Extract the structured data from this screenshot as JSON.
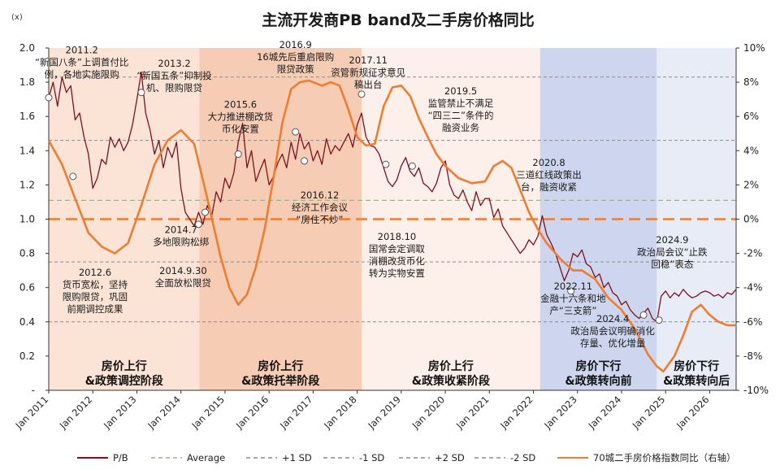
{
  "chart_data": {
    "type": "line",
    "title": "主流开发商PB band及二手房价格同比",
    "y_unit_label": "(x)",
    "x_ticks": [
      "Jan 2011",
      "Jan 2012",
      "Jan 2013",
      "Jan 2014",
      "Jan 2015",
      "Jan 2016",
      "Jan 2017",
      "Jan 2018",
      "Jan 2019",
      "Jan 2020",
      "Jan 2021",
      "Jan 2022",
      "Jan 2023",
      "Jan 2024",
      "Jan 2025",
      "Jan 2026"
    ],
    "x_range": [
      2011.0,
      2026.6
    ],
    "y_left": {
      "min": 0.0,
      "max": 2.0,
      "ticks": [
        "-",
        "0.2",
        "0.4",
        "0.6",
        "0.8",
        "1.0",
        "1.2",
        "1.4",
        "1.6",
        "1.8",
        "2.0"
      ]
    },
    "y_right": {
      "min": -10,
      "max": 10,
      "ticks": [
        "-10%",
        "-8%",
        "-6%",
        "-4%",
        "-2%",
        "0%",
        "2%",
        "4%",
        "6%",
        "8%",
        "10%"
      ]
    },
    "reference_lines": {
      "average": 1.11,
      "plus_1sd": 1.46,
      "minus_1sd": 0.75,
      "plus_2sd": 1.83,
      "minus_2sd": 0.4,
      "yoy_zero": 0.0
    },
    "phases": [
      {
        "start": 2011.0,
        "end": 2014.42,
        "color": "#fbe4d6",
        "label_line1": "房价上行",
        "label_line2": "&政策调控阶段"
      },
      {
        "start": 2014.42,
        "end": 2018.1,
        "color": "#f6cdb4",
        "label_line1": "房价上行",
        "label_line2": "&政策托举阶段"
      },
      {
        "start": 2018.1,
        "end": 2022.15,
        "color": "#fdf0ea",
        "label_line1": "房价上行",
        "label_line2": "&政策收紧阶段"
      },
      {
        "start": 2022.15,
        "end": 2024.8,
        "color": "#cdd6ee",
        "label_line1": "房价下行",
        "label_line2": "&政策转向前"
      },
      {
        "start": 2024.8,
        "end": 2026.6,
        "color": "#e8ecf7",
        "label_line1": "房价下行",
        "label_line2": "&政策转向后"
      }
    ],
    "series": [
      {
        "name": "P/B",
        "color": "#7b1020",
        "points": [
          [
            2011.0,
            1.71
          ],
          [
            2011.1,
            1.8
          ],
          [
            2011.2,
            1.66
          ],
          [
            2011.3,
            1.83
          ],
          [
            2011.4,
            1.74
          ],
          [
            2011.5,
            1.78
          ],
          [
            2011.6,
            1.58
          ],
          [
            2011.7,
            1.62
          ],
          [
            2011.8,
            1.48
          ],
          [
            2011.9,
            1.38
          ],
          [
            2012.0,
            1.18
          ],
          [
            2012.1,
            1.24
          ],
          [
            2012.2,
            1.35
          ],
          [
            2012.3,
            1.32
          ],
          [
            2012.4,
            1.48
          ],
          [
            2012.5,
            1.42
          ],
          [
            2012.6,
            1.47
          ],
          [
            2012.7,
            1.4
          ],
          [
            2012.8,
            1.45
          ],
          [
            2012.9,
            1.55
          ],
          [
            2013.0,
            1.7
          ],
          [
            2013.1,
            1.86
          ],
          [
            2013.2,
            1.62
          ],
          [
            2013.3,
            1.52
          ],
          [
            2013.4,
            1.38
          ],
          [
            2013.5,
            1.46
          ],
          [
            2013.6,
            1.3
          ],
          [
            2013.7,
            1.42
          ],
          [
            2013.8,
            1.36
          ],
          [
            2013.9,
            1.45
          ],
          [
            2014.0,
            1.18
          ],
          [
            2014.1,
            1.04
          ],
          [
            2014.2,
            1.0
          ],
          [
            2014.3,
            0.96
          ],
          [
            2014.4,
            1.04
          ],
          [
            2014.5,
            0.97
          ],
          [
            2014.6,
            1.08
          ],
          [
            2014.7,
            1.02
          ],
          [
            2014.8,
            1.16
          ],
          [
            2014.9,
            1.1
          ],
          [
            2015.0,
            1.24
          ],
          [
            2015.1,
            1.18
          ],
          [
            2015.2,
            1.27
          ],
          [
            2015.3,
            1.45
          ],
          [
            2015.4,
            1.56
          ],
          [
            2015.5,
            1.3
          ],
          [
            2015.6,
            1.4
          ],
          [
            2015.7,
            1.22
          ],
          [
            2015.8,
            1.29
          ],
          [
            2015.9,
            1.35
          ],
          [
            2016.0,
            1.2
          ],
          [
            2016.1,
            1.25
          ],
          [
            2016.2,
            1.33
          ],
          [
            2016.3,
            1.38
          ],
          [
            2016.4,
            1.3
          ],
          [
            2016.5,
            1.45
          ],
          [
            2016.6,
            1.35
          ],
          [
            2016.7,
            1.5
          ],
          [
            2016.8,
            1.41
          ],
          [
            2016.9,
            1.45
          ],
          [
            2017.0,
            1.34
          ],
          [
            2017.1,
            1.4
          ],
          [
            2017.2,
            1.32
          ],
          [
            2017.3,
            1.47
          ],
          [
            2017.4,
            1.38
          ],
          [
            2017.5,
            1.43
          ],
          [
            2017.6,
            1.4
          ],
          [
            2017.7,
            1.45
          ],
          [
            2017.8,
            1.5
          ],
          [
            2017.9,
            1.42
          ],
          [
            2018.0,
            1.55
          ],
          [
            2018.1,
            1.62
          ],
          [
            2018.2,
            1.48
          ],
          [
            2018.3,
            1.43
          ],
          [
            2018.4,
            1.42
          ],
          [
            2018.5,
            1.38
          ],
          [
            2018.6,
            1.3
          ],
          [
            2018.7,
            1.22
          ],
          [
            2018.8,
            1.19
          ],
          [
            2018.9,
            1.23
          ],
          [
            2019.0,
            1.31
          ],
          [
            2019.1,
            1.36
          ],
          [
            2019.2,
            1.28
          ],
          [
            2019.3,
            1.25
          ],
          [
            2019.4,
            1.3
          ],
          [
            2019.5,
            1.21
          ],
          [
            2019.6,
            1.19
          ],
          [
            2019.7,
            1.16
          ],
          [
            2019.8,
            1.21
          ],
          [
            2019.9,
            1.3
          ],
          [
            2020.0,
            1.34
          ],
          [
            2020.1,
            1.2
          ],
          [
            2020.2,
            1.14
          ],
          [
            2020.3,
            1.12
          ],
          [
            2020.4,
            1.17
          ],
          [
            2020.5,
            1.1
          ],
          [
            2020.6,
            1.05
          ],
          [
            2020.7,
            1.16
          ],
          [
            2020.8,
            1.08
          ],
          [
            2020.9,
            1.12
          ],
          [
            2021.0,
            1.12
          ],
          [
            2021.1,
            1.01
          ],
          [
            2021.2,
            1.06
          ],
          [
            2021.3,
            0.96
          ],
          [
            2021.4,
            0.92
          ],
          [
            2021.5,
            0.88
          ],
          [
            2021.6,
            0.84
          ],
          [
            2021.7,
            0.8
          ],
          [
            2021.8,
            0.83
          ],
          [
            2021.9,
            0.88
          ],
          [
            2022.0,
            0.85
          ],
          [
            2022.1,
            0.9
          ],
          [
            2022.2,
            1.02
          ],
          [
            2022.3,
            0.91
          ],
          [
            2022.4,
            0.86
          ],
          [
            2022.5,
            0.8
          ],
          [
            2022.6,
            0.72
          ],
          [
            2022.7,
            0.64
          ],
          [
            2022.8,
            0.7
          ],
          [
            2022.9,
            0.8
          ],
          [
            2023.0,
            0.78
          ],
          [
            2023.1,
            0.82
          ],
          [
            2023.2,
            0.74
          ],
          [
            2023.3,
            0.72
          ],
          [
            2023.4,
            0.66
          ],
          [
            2023.5,
            0.68
          ],
          [
            2023.6,
            0.6
          ],
          [
            2023.7,
            0.63
          ],
          [
            2023.8,
            0.57
          ],
          [
            2023.9,
            0.55
          ],
          [
            2024.0,
            0.5
          ],
          [
            2024.1,
            0.52
          ],
          [
            2024.2,
            0.47
          ],
          [
            2024.3,
            0.44
          ],
          [
            2024.4,
            0.42
          ],
          [
            2024.5,
            0.45
          ],
          [
            2024.6,
            0.48
          ],
          [
            2024.7,
            0.42
          ],
          [
            2024.8,
            0.4
          ],
          [
            2024.9,
            0.55
          ],
          [
            2025.0,
            0.58
          ],
          [
            2025.1,
            0.54
          ],
          [
            2025.2,
            0.57
          ],
          [
            2025.3,
            0.55
          ],
          [
            2025.4,
            0.59
          ],
          [
            2025.5,
            0.56
          ],
          [
            2025.6,
            0.54
          ],
          [
            2025.7,
            0.55
          ],
          [
            2025.8,
            0.57
          ],
          [
            2025.9,
            0.58
          ],
          [
            2026.0,
            0.57
          ],
          [
            2026.1,
            0.55
          ],
          [
            2026.2,
            0.56
          ],
          [
            2026.3,
            0.54
          ],
          [
            2026.4,
            0.57
          ],
          [
            2026.5,
            0.56
          ],
          [
            2026.6,
            0.59
          ]
        ]
      },
      {
        "name": "70城二手房价格指数同比（右轴）",
        "color": "#ed7d31",
        "axis": "right",
        "points": [
          [
            2011.0,
            4.6
          ],
          [
            2011.3,
            3.2
          ],
          [
            2011.6,
            1.2
          ],
          [
            2011.9,
            -0.8
          ],
          [
            2012.2,
            -1.6
          ],
          [
            2012.5,
            -2.0
          ],
          [
            2012.8,
            -1.4
          ],
          [
            2013.1,
            0.8
          ],
          [
            2013.4,
            3.2
          ],
          [
            2013.7,
            4.6
          ],
          [
            2014.0,
            5.2
          ],
          [
            2014.3,
            4.4
          ],
          [
            2014.6,
            1.2
          ],
          [
            2014.9,
            -2.2
          ],
          [
            2015.1,
            -4.0
          ],
          [
            2015.3,
            -5.0
          ],
          [
            2015.5,
            -4.4
          ],
          [
            2015.7,
            -2.8
          ],
          [
            2015.9,
            -0.6
          ],
          [
            2016.1,
            2.4
          ],
          [
            2016.3,
            5.6
          ],
          [
            2016.5,
            7.6
          ],
          [
            2016.7,
            8.0
          ],
          [
            2016.9,
            8.1
          ],
          [
            2017.2,
            7.8
          ],
          [
            2017.4,
            8.0
          ],
          [
            2017.6,
            7.8
          ],
          [
            2017.8,
            6.4
          ],
          [
            2018.0,
            4.8
          ],
          [
            2018.2,
            4.3
          ],
          [
            2018.4,
            4.4
          ],
          [
            2018.6,
            6.6
          ],
          [
            2018.8,
            7.7
          ],
          [
            2019.0,
            7.8
          ],
          [
            2019.2,
            7.2
          ],
          [
            2019.4,
            5.9
          ],
          [
            2019.6,
            4.8
          ],
          [
            2019.8,
            3.8
          ],
          [
            2020.0,
            3.1
          ],
          [
            2020.3,
            2.4
          ],
          [
            2020.6,
            2.1
          ],
          [
            2020.9,
            2.2
          ],
          [
            2021.1,
            3.1
          ],
          [
            2021.3,
            3.4
          ],
          [
            2021.5,
            3.0
          ],
          [
            2021.7,
            1.7
          ],
          [
            2021.9,
            0.4
          ],
          [
            2022.1,
            -0.6
          ],
          [
            2022.3,
            -1.4
          ],
          [
            2022.6,
            -2.3
          ],
          [
            2022.9,
            -3.0
          ],
          [
            2023.1,
            -3.0
          ],
          [
            2023.4,
            -3.5
          ],
          [
            2023.7,
            -4.6
          ],
          [
            2024.0,
            -5.3
          ],
          [
            2024.3,
            -6.4
          ],
          [
            2024.6,
            -7.9
          ],
          [
            2024.8,
            -8.6
          ],
          [
            2024.95,
            -8.9
          ],
          [
            2025.2,
            -8.0
          ],
          [
            2025.4,
            -6.8
          ],
          [
            2025.6,
            -5.4
          ],
          [
            2025.8,
            -5.0
          ],
          [
            2026.0,
            -5.6
          ],
          [
            2026.2,
            -6.0
          ],
          [
            2026.4,
            -6.2
          ],
          [
            2026.6,
            -6.2
          ]
        ]
      }
    ],
    "markers": [
      [
        2011.0,
        1.71
      ],
      [
        2011.55,
        1.25
      ],
      [
        2013.1,
        1.74
      ],
      [
        2014.4,
        0.97
      ],
      [
        2014.55,
        1.04
      ],
      [
        2015.3,
        1.38
      ],
      [
        2016.6,
        1.51
      ],
      [
        2016.8,
        1.34
      ],
      [
        2018.1,
        1.73
      ],
      [
        2018.65,
        1.32
      ],
      [
        2019.25,
        1.31
      ],
      [
        2022.85,
        0.58
      ],
      [
        2024.5,
        0.44
      ],
      [
        2024.85,
        0.41
      ]
    ],
    "annotations": [
      {
        "x": 2011.75,
        "y": 1.97,
        "lines": [
          "2011.2",
          "“新国八条”上调首付比",
          "例，各地实施限购"
        ]
      },
      {
        "x": 2013.85,
        "y": 1.89,
        "lines": [
          "2013.2",
          "“新国五条”抑制投",
          "机、限购限贷"
        ]
      },
      {
        "x": 2015.35,
        "y": 1.65,
        "lines": [
          "2015.6",
          "大力推进棚改货",
          "币化安置"
        ]
      },
      {
        "x": 2016.6,
        "y": 2.0,
        "lines": [
          "2016.9",
          "16城先后重启限购",
          "限贷政策"
        ]
      },
      {
        "x": 2018.25,
        "y": 1.91,
        "lines": [
          "2017.11",
          "资管新规征求意见",
          "稿出台"
        ]
      },
      {
        "x": 2020.35,
        "y": 1.73,
        "lines": [
          "2019.5",
          "监管禁止不满足",
          "“四三二”条件的",
          "融资业务"
        ]
      },
      {
        "x": 2014.0,
        "y": 0.92,
        "lines": [
          "2014.7",
          "多地限购松绑"
        ]
      },
      {
        "x": 2012.05,
        "y": 0.67,
        "lines": [
          "2012.6",
          "货币宽松，坚持",
          "限购限贷，巩固",
          "前期调控成果"
        ]
      },
      {
        "x": 2014.05,
        "y": 0.68,
        "lines": [
          "2014.9.30",
          "全面放松限贷"
        ]
      },
      {
        "x": 2017.15,
        "y": 1.12,
        "lines": [
          "2016.12",
          "经济工作会议",
          "“房住不炒”"
        ]
      },
      {
        "x": 2018.9,
        "y": 0.88,
        "lines": [
          "2018.10",
          "国常会定调取",
          "消棚改货币化",
          "转为实物安置"
        ]
      },
      {
        "x": 2022.35,
        "y": 1.31,
        "lines": [
          "2020.8",
          "三道红线政策出",
          "台，融资收紧"
        ]
      },
      {
        "x": 2025.15,
        "y": 0.86,
        "lines": [
          "2024.9",
          "政治局会议“止跌",
          "回稳”表态"
        ]
      },
      {
        "x": 2022.9,
        "y": 0.59,
        "lines": [
          "2022.11",
          "金融十六条和地",
          "产“三支箭”"
        ]
      },
      {
        "x": 2023.8,
        "y": 0.4,
        "lines": [
          "2024.4",
          "政治局会议明确消化",
          "存量、优化增量"
        ]
      }
    ],
    "legend": [
      {
        "label": "P/B",
        "color": "#7b1020",
        "style": "solid"
      },
      {
        "label": "Average",
        "color": "#9fb08c",
        "style": "dash"
      },
      {
        "label": "+1 SD",
        "color": "#8c8c8c",
        "style": "dash"
      },
      {
        "label": "-1 SD",
        "color": "#8c8c8c",
        "style": "dash"
      },
      {
        "label": "+2 SD",
        "color": "#8c8c8c",
        "style": "dash"
      },
      {
        "label": "-2 SD",
        "color": "#8c8c8c",
        "style": "dash"
      },
      {
        "label": "70城二手房价格指数同比（右轴）",
        "color": "#ed7d31",
        "style": "solid"
      }
    ]
  }
}
